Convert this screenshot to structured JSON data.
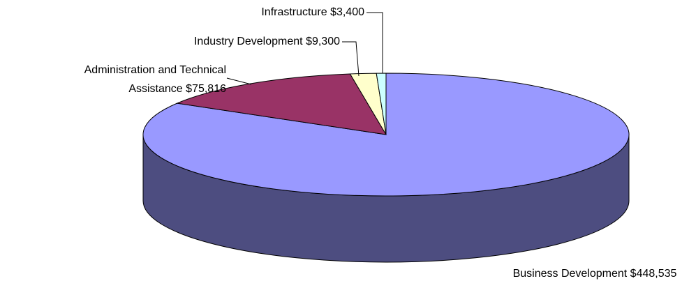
{
  "chart_data": {
    "type": "pie3d",
    "categories": [
      "Business Development",
      "Administration and Technical Assistance",
      "Industry Development",
      "Infrastructure"
    ],
    "values": [
      448535,
      75816,
      9300,
      3400
    ],
    "value_labels": [
      "$448,535",
      "$75,816",
      "$9,300",
      "$3,400"
    ],
    "colors": [
      "#9999ff",
      "#993366",
      "#ffffcc",
      "#ccffff"
    ]
  }
}
